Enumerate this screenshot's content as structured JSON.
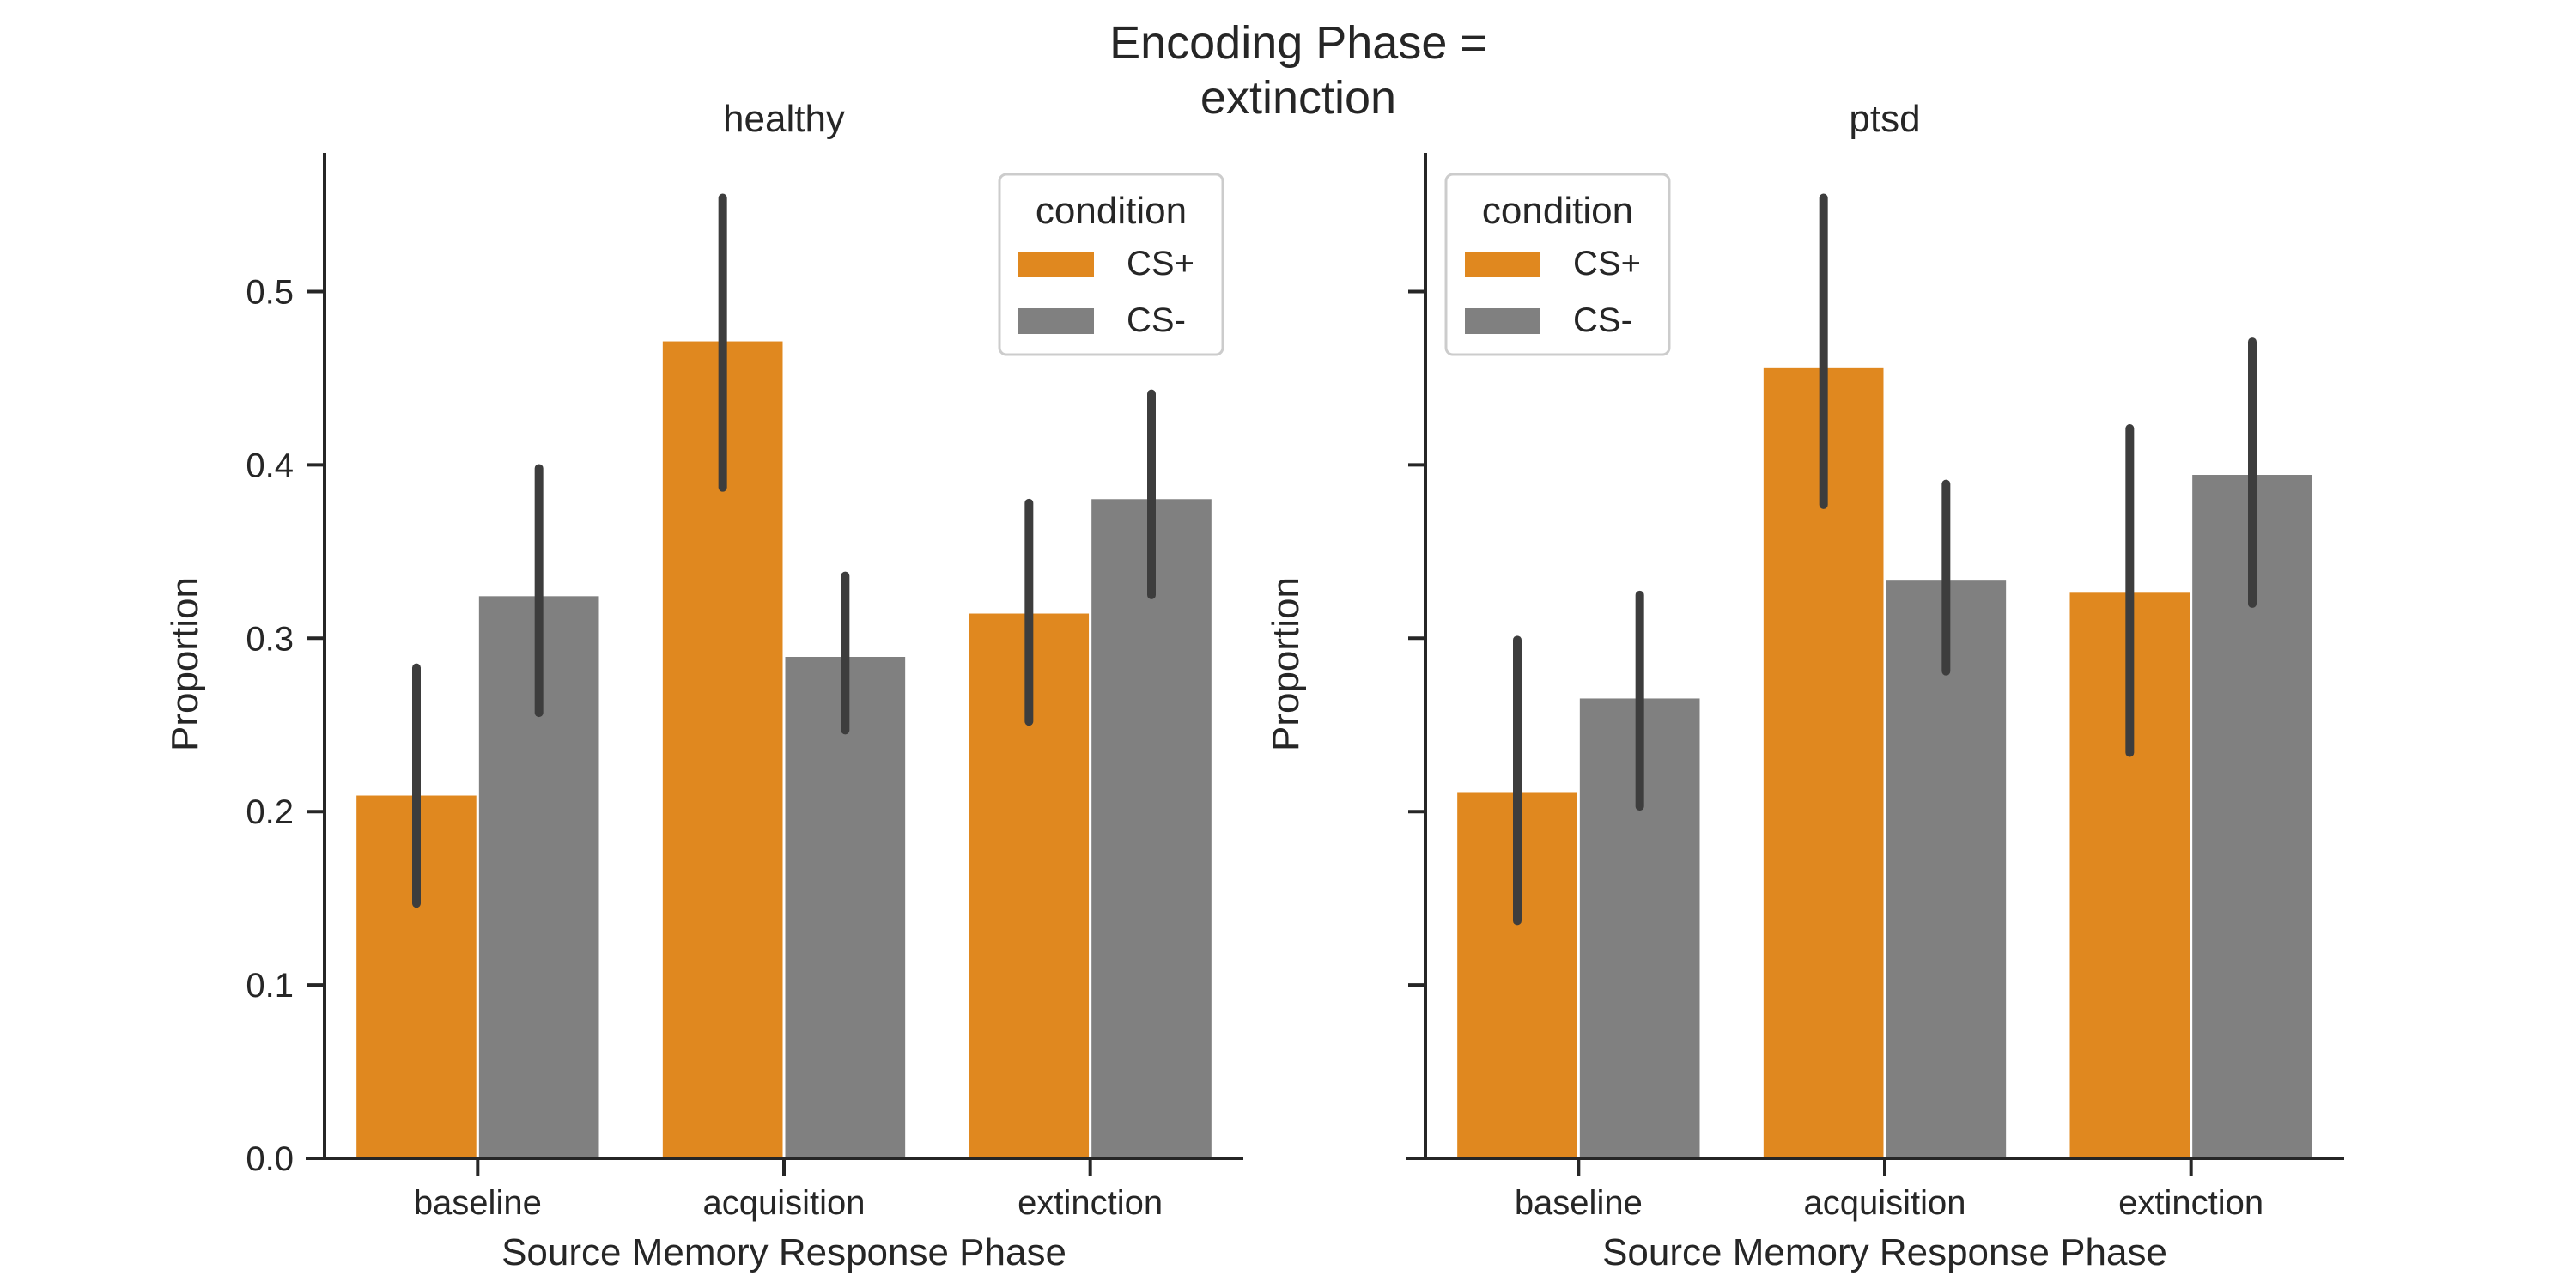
{
  "suptitle_lines": [
    "Encoding Phase =",
    "extinction"
  ],
  "colors": {
    "cs_plus": "#e0881f",
    "cs_minus": "#808080",
    "error": "#3d3d3d",
    "axis": "#262626"
  },
  "chart_data": [
    {
      "type": "bar",
      "title": "healthy",
      "xlabel": "Source Memory Response Phase",
      "ylabel": "Proportion",
      "ylim": [
        0,
        0.58
      ],
      "yticks": [
        "0.0",
        "0.1",
        "0.2",
        "0.3",
        "0.4",
        "0.5"
      ],
      "categories": [
        "baseline",
        "acquisition",
        "extinction"
      ],
      "legend": {
        "title": "condition",
        "placement": "top-right"
      },
      "series": [
        {
          "name": "CS+",
          "values": [
            0.21,
            0.472,
            0.315
          ],
          "ci_low": [
            0.147,
            0.387,
            0.252
          ],
          "ci_high": [
            0.283,
            0.554,
            0.378
          ]
        },
        {
          "name": "CS-",
          "values": [
            0.325,
            0.29,
            0.381
          ],
          "ci_low": [
            0.257,
            0.247,
            0.325
          ],
          "ci_high": [
            0.398,
            0.336,
            0.441
          ]
        }
      ]
    },
    {
      "type": "bar",
      "title": "ptsd",
      "xlabel": "Source Memory Response Phase",
      "ylabel": "Proportion",
      "ylim": [
        0,
        0.58
      ],
      "yticks": [
        "",
        "",
        "",
        "",
        "",
        ""
      ],
      "categories": [
        "baseline",
        "acquisition",
        "extinction"
      ],
      "legend": {
        "title": "condition",
        "placement": "top-left"
      },
      "series": [
        {
          "name": "CS+",
          "values": [
            0.212,
            0.457,
            0.327
          ],
          "ci_low": [
            0.137,
            0.377,
            0.234
          ],
          "ci_high": [
            0.299,
            0.554,
            0.421
          ]
        },
        {
          "name": "CS-",
          "values": [
            0.266,
            0.334,
            0.395
          ],
          "ci_low": [
            0.203,
            0.281,
            0.32
          ],
          "ci_high": [
            0.325,
            0.389,
            0.471
          ]
        }
      ]
    }
  ]
}
